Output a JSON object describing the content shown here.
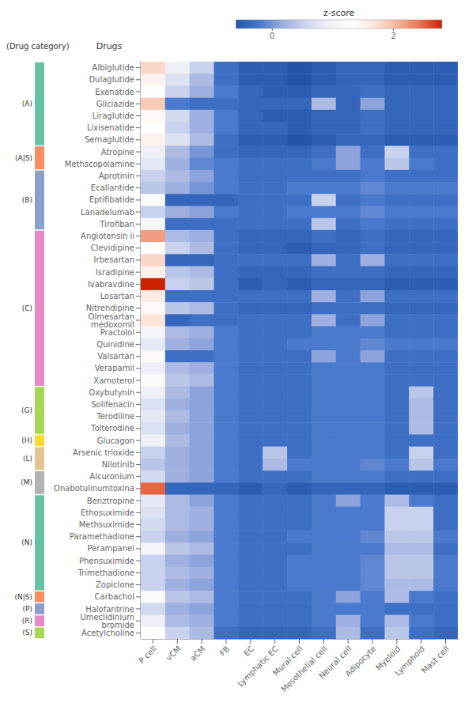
{
  "chart_data": {
    "type": "heatmap",
    "x": [
      "P cell",
      "vCM",
      "aCM",
      "FB",
      "EC",
      "Lymphatic EC",
      "Mural cell",
      "Mesothelial cell",
      "Neural cell",
      "Adipocyte",
      "Myeloid",
      "Lymphoid",
      "Mast cell"
    ],
    "y": [
      "Albiglutide",
      "Dulaglutide",
      "Exenatide",
      "Gliclazide",
      "Liraglutide",
      "Lixisenatide",
      "Semaglutide",
      "Atropine",
      "Methscopolamine",
      "Aprotinin",
      "Ecallantide",
      "Eptifibatide",
      "Lanadelumab",
      "Tirofiban",
      "Angiotensin ii",
      "Clevidipine",
      "Irbesartan",
      "Isradipine",
      "Ivabravdine",
      "Losartan",
      "Nitrendipine",
      "Olmesartan medoxomil",
      "Practolol",
      "Quinidine",
      "Valsartan",
      "Verapamil",
      "Xamoterol",
      "Oxybutynin",
      "Solifenacin",
      "Terodiline",
      "Tolterodine",
      "Glucagon",
      "Arsenic trioxide",
      "Nilotinib",
      "Alcuronium",
      "Onabotulinumtoxina",
      "Benztropine",
      "Ethosuximide",
      "Methsuximide",
      "Paramethadione",
      "Perampanel",
      "Phensuximide",
      "Trimethadione",
      "Zopiclone",
      "Carbachol",
      "Halofantrine",
      "Umeclidinium bromide",
      "Acetylcholine"
    ],
    "ylabel": "Drugs",
    "group_label": "(Drug category)",
    "groups": [
      {
        "label": "(A)",
        "color": "#66c2a5",
        "start": 0,
        "end": 6
      },
      {
        "label": "(A|S)",
        "color": "#fc8d62",
        "start": 7,
        "end": 8
      },
      {
        "label": "(B)",
        "color": "#8da0cb",
        "start": 9,
        "end": 13
      },
      {
        "label": "(C)",
        "color": "#e78ac3",
        "start": 14,
        "end": 26
      },
      {
        "label": "(G)",
        "color": "#a6d854",
        "start": 27,
        "end": 30
      },
      {
        "label": "(H)",
        "color": "#ffd92f",
        "start": 31,
        "end": 31
      },
      {
        "label": "(L)",
        "color": "#e5c494",
        "start": 32,
        "end": 33
      },
      {
        "label": "(M)",
        "color": "#b3b3b3",
        "start": 34,
        "end": 35
      },
      {
        "label": "(N)",
        "color": "#66c2a5",
        "start": 36,
        "end": 43
      },
      {
        "label": "(N|S)",
        "color": "#fc8d62",
        "start": 44,
        "end": 44
      },
      {
        "label": "(P)",
        "color": "#8da0cb",
        "start": 45,
        "end": 45
      },
      {
        "label": "(R)",
        "color": "#e78ac3",
        "start": 46,
        "end": 46
      },
      {
        "label": "(S)",
        "color": "#a6d854",
        "start": 47,
        "end": 47
      }
    ],
    "values": [
      [
        1.8,
        0.9,
        0.5,
        -0.3,
        -0.5,
        -0.5,
        -0.6,
        -0.5,
        -0.4,
        -0.4,
        -0.5,
        -0.5,
        -0.5
      ],
      [
        1.5,
        0.7,
        0.3,
        -0.3,
        -0.5,
        -0.5,
        -0.6,
        -0.5,
        -0.4,
        -0.4,
        -0.5,
        -0.5,
        -0.5
      ],
      [
        1.3,
        0.5,
        0.2,
        -0.2,
        -0.4,
        -0.5,
        -0.5,
        -0.4,
        -0.4,
        -0.3,
        -0.4,
        -0.4,
        -0.4
      ],
      [
        1.9,
        -0.2,
        -0.3,
        -0.3,
        -0.4,
        -0.4,
        -0.4,
        0.3,
        -0.4,
        0.1,
        -0.4,
        -0.4,
        -0.4
      ],
      [
        1.4,
        0.6,
        0.2,
        -0.2,
        -0.4,
        -0.5,
        -0.5,
        -0.4,
        -0.4,
        -0.3,
        -0.4,
        -0.4,
        -0.4
      ],
      [
        1.3,
        0.5,
        0.2,
        -0.2,
        -0.4,
        -0.4,
        -0.5,
        -0.4,
        -0.4,
        -0.3,
        -0.4,
        -0.4,
        -0.4
      ],
      [
        1.5,
        0.7,
        0.3,
        -0.3,
        -0.5,
        -0.5,
        -0.6,
        -0.5,
        -0.4,
        -0.4,
        -0.5,
        -0.5,
        -0.5
      ],
      [
        0.9,
        0.3,
        0.0,
        -0.3,
        -0.4,
        -0.4,
        -0.4,
        -0.3,
        0.1,
        -0.3,
        0.5,
        -0.3,
        -0.3
      ],
      [
        0.8,
        0.2,
        -0.1,
        -0.2,
        -0.3,
        -0.3,
        -0.3,
        -0.2,
        0.1,
        -0.2,
        0.4,
        -0.2,
        -0.3
      ],
      [
        0.5,
        0.3,
        0.1,
        -0.2,
        -0.3,
        -0.3,
        -0.3,
        -0.3,
        -0.3,
        -0.2,
        -0.3,
        -0.3,
        -0.3
      ],
      [
        0.4,
        0.2,
        0.0,
        -0.2,
        -0.3,
        -0.3,
        -0.2,
        -0.2,
        -0.2,
        -0.1,
        -0.2,
        -0.2,
        -0.2
      ],
      [
        1.2,
        -0.4,
        -0.4,
        -0.4,
        -0.3,
        -0.3,
        -0.3,
        0.5,
        -0.3,
        -0.2,
        -0.3,
        -0.3,
        -0.3
      ],
      [
        0.5,
        0.2,
        0.1,
        -0.2,
        -0.3,
        -0.3,
        -0.2,
        -0.2,
        -0.2,
        -0.1,
        -0.2,
        -0.2,
        -0.2
      ],
      [
        1.1,
        -0.3,
        -0.3,
        -0.3,
        -0.3,
        -0.3,
        -0.3,
        0.4,
        -0.3,
        -0.2,
        -0.3,
        -0.3,
        -0.3
      ],
      [
        2.2,
        0.3,
        0.2,
        -0.3,
        -0.4,
        -0.4,
        -0.4,
        -0.3,
        -0.4,
        -0.3,
        -0.4,
        -0.4,
        -0.4
      ],
      [
        1.3,
        0.5,
        0.3,
        -0.3,
        -0.4,
        -0.4,
        -0.5,
        -0.4,
        -0.4,
        -0.3,
        -0.4,
        -0.4,
        -0.4
      ],
      [
        1.8,
        -0.4,
        -0.4,
        -0.3,
        -0.3,
        -0.3,
        -0.3,
        0.2,
        -0.3,
        0.2,
        -0.3,
        -0.3,
        -0.3
      ],
      [
        1.5,
        0.4,
        0.3,
        -0.3,
        -0.4,
        -0.4,
        -0.4,
        -0.3,
        -0.3,
        -0.3,
        -0.4,
        -0.4,
        -0.4
      ],
      [
        2.8,
        0.5,
        0.4,
        -0.3,
        -0.5,
        -0.4,
        -0.5,
        -0.4,
        -0.4,
        -0.4,
        -0.5,
        -0.5,
        -0.5
      ],
      [
        1.6,
        -0.3,
        -0.3,
        -0.3,
        -0.3,
        -0.3,
        -0.3,
        0.2,
        -0.3,
        0.1,
        -0.3,
        -0.3,
        -0.3
      ],
      [
        1.4,
        0.4,
        0.3,
        -0.3,
        -0.4,
        -0.4,
        -0.4,
        -0.3,
        -0.3,
        -0.3,
        -0.4,
        -0.4,
        -0.4
      ],
      [
        1.7,
        -0.4,
        -0.3,
        -0.3,
        -0.3,
        -0.3,
        -0.3,
        0.2,
        -0.3,
        0.1,
        -0.3,
        -0.3,
        -0.3
      ],
      [
        1.0,
        0.3,
        0.2,
        -0.2,
        -0.3,
        -0.3,
        -0.3,
        -0.2,
        -0.2,
        -0.2,
        -0.3,
        -0.3,
        -0.3
      ],
      [
        0.8,
        0.2,
        0.1,
        -0.2,
        -0.3,
        -0.3,
        -0.2,
        -0.2,
        -0.2,
        -0.1,
        -0.2,
        -0.2,
        -0.2
      ],
      [
        1.4,
        -0.3,
        -0.3,
        -0.2,
        -0.3,
        -0.3,
        -0.3,
        0.1,
        -0.2,
        0.1,
        -0.3,
        -0.3,
        -0.3
      ],
      [
        0.9,
        0.3,
        0.2,
        -0.2,
        -0.3,
        -0.3,
        -0.3,
        -0.2,
        -0.2,
        -0.2,
        -0.3,
        -0.3,
        -0.3
      ],
      [
        1.2,
        0.4,
        0.3,
        -0.2,
        -0.3,
        -0.3,
        -0.3,
        -0.2,
        -0.2,
        -0.2,
        -0.3,
        -0.3,
        -0.3
      ],
      [
        0.9,
        0.3,
        0.1,
        -0.2,
        -0.3,
        -0.3,
        -0.3,
        -0.2,
        -0.2,
        -0.2,
        -0.3,
        0.4,
        -0.3
      ],
      [
        0.7,
        0.2,
        0.1,
        -0.2,
        -0.3,
        -0.3,
        -0.3,
        -0.2,
        -0.2,
        -0.2,
        -0.3,
        0.3,
        -0.3
      ],
      [
        0.8,
        0.3,
        0.1,
        -0.2,
        -0.3,
        -0.3,
        -0.3,
        -0.2,
        -0.2,
        -0.2,
        -0.3,
        0.3,
        -0.3
      ],
      [
        0.7,
        0.2,
        0.1,
        -0.2,
        -0.3,
        -0.3,
        -0.3,
        -0.2,
        -0.2,
        -0.2,
        -0.3,
        0.3,
        -0.3
      ],
      [
        0.9,
        0.3,
        0.1,
        -0.2,
        -0.3,
        -0.3,
        -0.3,
        -0.2,
        -0.2,
        -0.2,
        -0.3,
        -0.3,
        -0.3
      ],
      [
        0.5,
        0.2,
        0.1,
        -0.2,
        -0.3,
        0.4,
        -0.3,
        -0.2,
        -0.2,
        -0.2,
        -0.3,
        0.5,
        -0.3
      ],
      [
        0.4,
        0.2,
        0.1,
        -0.2,
        -0.3,
        0.3,
        -0.2,
        -0.2,
        -0.2,
        -0.1,
        -0.2,
        0.4,
        -0.2
      ],
      [
        0.6,
        0.2,
        0.1,
        -0.2,
        -0.3,
        -0.3,
        -0.3,
        -0.2,
        -0.2,
        -0.2,
        -0.3,
        -0.3,
        -0.3
      ],
      [
        2.5,
        -0.4,
        -0.4,
        -0.4,
        -0.5,
        -0.4,
        -0.5,
        -0.4,
        -0.4,
        -0.4,
        -0.5,
        -0.5,
        -0.5
      ],
      [
        0.8,
        0.3,
        0.1,
        -0.2,
        -0.3,
        -0.3,
        -0.3,
        -0.2,
        0.1,
        -0.2,
        0.3,
        -0.2,
        -0.3
      ],
      [
        0.7,
        0.3,
        0.2,
        -0.2,
        -0.3,
        -0.3,
        -0.3,
        -0.2,
        -0.2,
        -0.2,
        0.5,
        0.5,
        -0.3
      ],
      [
        0.6,
        0.3,
        0.2,
        -0.2,
        -0.3,
        -0.3,
        -0.3,
        -0.2,
        -0.2,
        -0.2,
        0.5,
        0.5,
        -0.3
      ],
      [
        0.5,
        0.2,
        0.1,
        -0.2,
        -0.3,
        -0.3,
        -0.2,
        -0.2,
        -0.2,
        -0.1,
        0.4,
        0.4,
        -0.2
      ],
      [
        1.0,
        0.4,
        0.3,
        -0.2,
        -0.3,
        -0.3,
        -0.3,
        -0.2,
        -0.2,
        -0.2,
        0.3,
        0.3,
        -0.3
      ],
      [
        0.5,
        0.2,
        0.1,
        -0.2,
        -0.3,
        -0.3,
        -0.2,
        -0.2,
        -0.2,
        -0.1,
        0.4,
        0.4,
        -0.2
      ],
      [
        0.5,
        0.3,
        0.2,
        -0.2,
        -0.3,
        -0.3,
        -0.2,
        -0.2,
        -0.2,
        -0.1,
        0.4,
        0.4,
        -0.2
      ],
      [
        0.5,
        0.2,
        0.1,
        -0.2,
        -0.3,
        -0.3,
        -0.2,
        -0.2,
        -0.2,
        -0.1,
        0.3,
        0.3,
        -0.2
      ],
      [
        1.2,
        0.4,
        0.3,
        -0.2,
        -0.3,
        -0.3,
        -0.3,
        -0.2,
        0.1,
        -0.2,
        0.3,
        -0.2,
        -0.3
      ],
      [
        0.6,
        0.2,
        0.1,
        -0.2,
        -0.3,
        -0.3,
        -0.3,
        -0.2,
        -0.2,
        -0.2,
        -0.3,
        -0.3,
        -0.3
      ],
      [
        0.9,
        0.3,
        0.2,
        -0.2,
        -0.3,
        -0.3,
        -0.3,
        -0.2,
        0.2,
        -0.2,
        0.3,
        -0.2,
        -0.3
      ],
      [
        1.3,
        0.5,
        0.3,
        -0.3,
        -0.4,
        -0.4,
        -0.4,
        -0.3,
        0.3,
        -0.3,
        0.4,
        -0.3,
        -0.4
      ]
    ],
    "zlim": [
      -0.6,
      2.8
    ],
    "zticks": [
      2,
      0
    ],
    "colorbar_label": "z-score",
    "colormap": [
      "#2255aa",
      "#4477cc",
      "#99aadd",
      "#ccd5ee",
      "#f0f0f8",
      "#ffffff",
      "#fce8e0",
      "#f5b8a0",
      "#ee7755",
      "#cc2200"
    ]
  }
}
